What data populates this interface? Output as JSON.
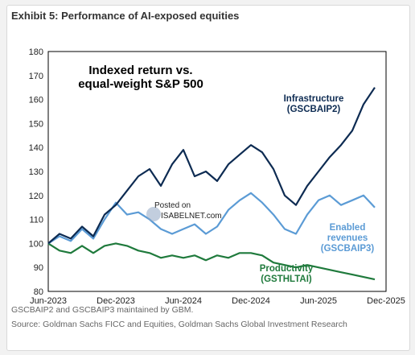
{
  "exhibit_title": "Exhibit 5: Performance of AI-exposed equities",
  "footnote": "GSCBAIP2 and GSCBAIP3 maintained by GBM.",
  "source": "Source: Goldman Sachs FICC and Equities, Goldman Sachs Global Investment Research",
  "watermark": {
    "line1": "Posted on",
    "line2": "ISABELNET.com"
  },
  "chart_data": {
    "type": "line",
    "title": "Indexed return vs. equal-weight S&P 500",
    "title_lines": [
      "Indexed return vs.",
      "equal-weight S&P 500"
    ],
    "ylim": [
      80,
      180
    ],
    "yticks": [
      80,
      90,
      100,
      110,
      120,
      130,
      140,
      150,
      160,
      170,
      180
    ],
    "xlim": [
      "2023-06",
      "2025-12"
    ],
    "xticks": [
      "Jun-2023",
      "Dec-2023",
      "Jun-2024",
      "Dec-2024",
      "Jun-2025",
      "Dec-2025"
    ],
    "grid": false,
    "legend": "inline labels",
    "series": [
      {
        "name": "Infrastructure (GSCBAIP2)",
        "label_lines": [
          "Infrastructure",
          "(GSCBAIP2)"
        ],
        "color": "#0d2b52",
        "x": [
          "2023-06",
          "2023-07",
          "2023-08",
          "2023-09",
          "2023-10",
          "2023-11",
          "2023-12",
          "2024-01",
          "2024-02",
          "2024-03",
          "2024-04",
          "2024-05",
          "2024-06",
          "2024-07",
          "2024-08",
          "2024-09",
          "2024-10",
          "2024-11",
          "2024-12",
          "2025-01",
          "2025-02",
          "2025-03",
          "2025-04",
          "2025-05",
          "2025-06",
          "2025-07",
          "2025-08",
          "2025-09",
          "2025-10",
          "2025-11"
        ],
        "values": [
          100,
          104,
          102,
          107,
          103,
          112,
          116,
          122,
          128,
          131,
          124,
          133,
          139,
          128,
          130,
          126,
          133,
          137,
          141,
          138,
          131,
          120,
          116,
          124,
          130,
          136,
          141,
          147,
          158,
          165
        ]
      },
      {
        "name": "Enabled revenues (GSCBAIP3)",
        "label_lines": [
          "Enabled",
          "revenues",
          "(GSCBAIP3)"
        ],
        "color": "#5b9bd5",
        "x": [
          "2023-06",
          "2023-07",
          "2023-08",
          "2023-09",
          "2023-10",
          "2023-11",
          "2023-12",
          "2024-01",
          "2024-02",
          "2024-03",
          "2024-04",
          "2024-05",
          "2024-06",
          "2024-07",
          "2024-08",
          "2024-09",
          "2024-10",
          "2024-11",
          "2024-12",
          "2025-01",
          "2025-02",
          "2025-03",
          "2025-04",
          "2025-05",
          "2025-06",
          "2025-07",
          "2025-08",
          "2025-09",
          "2025-10",
          "2025-11"
        ],
        "values": [
          100,
          103,
          101,
          106,
          102,
          110,
          117,
          112,
          113,
          110,
          106,
          104,
          106,
          108,
          104,
          107,
          114,
          118,
          121,
          117,
          112,
          106,
          104,
          112,
          118,
          120,
          116,
          118,
          120,
          115
        ]
      },
      {
        "name": "Productivity (GSTHLTAI)",
        "label_lines": [
          "Productivity",
          "(GSTHLTAI)"
        ],
        "color": "#1f7a3c",
        "x": [
          "2023-06",
          "2023-07",
          "2023-08",
          "2023-09",
          "2023-10",
          "2023-11",
          "2023-12",
          "2024-01",
          "2024-02",
          "2024-03",
          "2024-04",
          "2024-05",
          "2024-06",
          "2024-07",
          "2024-08",
          "2024-09",
          "2024-10",
          "2024-11",
          "2024-12",
          "2025-01",
          "2025-02",
          "2025-03",
          "2025-04",
          "2025-05",
          "2025-06",
          "2025-07",
          "2025-08",
          "2025-09",
          "2025-10",
          "2025-11"
        ],
        "values": [
          100,
          97,
          96,
          99,
          96,
          99,
          100,
          99,
          97,
          96,
          94,
          95,
          94,
          95,
          93,
          95,
          94,
          96,
          96,
          95,
          92,
          91,
          90,
          91,
          90,
          89,
          88,
          87,
          86,
          85
        ]
      }
    ]
  }
}
